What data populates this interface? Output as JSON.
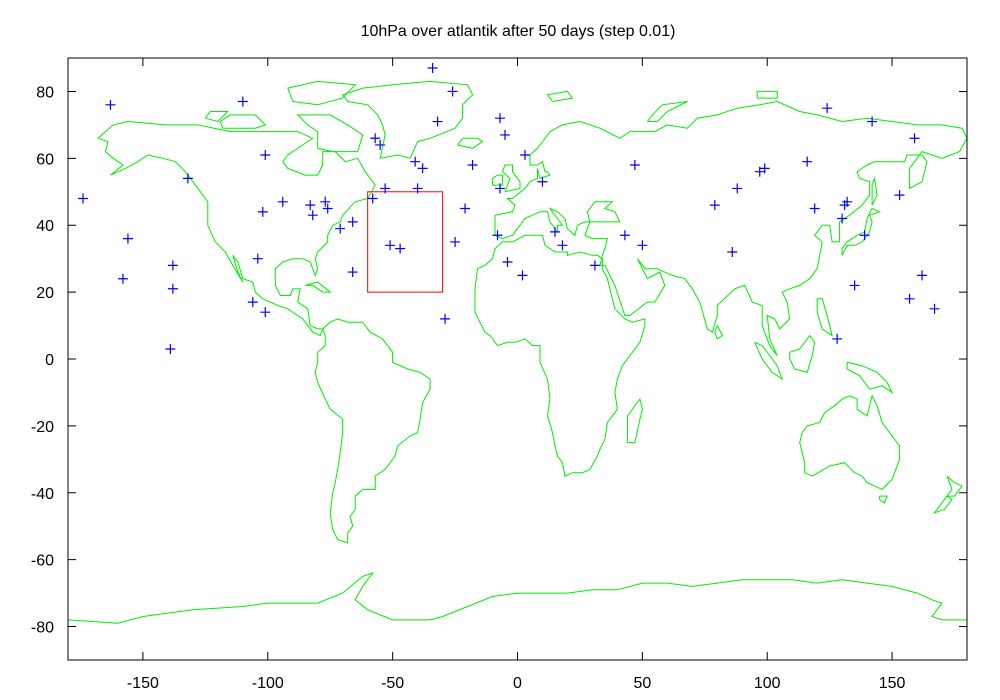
{
  "chart_data": {
    "type": "scatter",
    "title": "10hPa over atlantik after 50 days (step 0.01)",
    "xlim": [
      -180,
      180
    ],
    "ylim": [
      -90,
      90
    ],
    "x_ticks": [
      -150,
      -100,
      -50,
      0,
      50,
      100,
      150
    ],
    "y_ticks": [
      80,
      60,
      40,
      20,
      0,
      -20,
      -40,
      -60,
      -80
    ],
    "x_tick_labels": [
      "-150",
      "-100",
      "-50",
      "0",
      "50",
      "100",
      "150"
    ],
    "y_tick_labels": [
      "80",
      "60",
      "40",
      "20",
      "0",
      "-20",
      "-40",
      "-60",
      "-80"
    ],
    "grid": false,
    "colors": {
      "coast": "#00ee00",
      "points": "#0000ff",
      "region": "#ff0000",
      "frame": "#000000"
    },
    "region": {
      "lon_min": -60,
      "lon_max": -30,
      "lat_min": 20,
      "lat_max": 50
    },
    "points": [
      [
        -163,
        76
      ],
      [
        -110,
        77
      ],
      [
        -34,
        87
      ],
      [
        -26,
        80
      ],
      [
        -32,
        71
      ],
      [
        -7,
        72
      ],
      [
        -5,
        67
      ],
      [
        -57,
        66
      ],
      [
        -55,
        64
      ],
      [
        -101,
        61
      ],
      [
        -41,
        59
      ],
      [
        -38,
        57
      ],
      [
        -18,
        58
      ],
      [
        3,
        61
      ],
      [
        -132,
        54
      ],
      [
        -174,
        48
      ],
      [
        -94,
        47
      ],
      [
        -102,
        44
      ],
      [
        -83,
        46
      ],
      [
        -82,
        43
      ],
      [
        -77,
        47
      ],
      [
        -76,
        45
      ],
      [
        -71,
        39
      ],
      [
        -66,
        41
      ],
      [
        -58,
        48
      ],
      [
        -53,
        51
      ],
      [
        -40,
        51
      ],
      [
        -7,
        51
      ],
      [
        -21,
        45
      ],
      [
        10,
        53
      ],
      [
        47,
        58
      ],
      [
        -156,
        36
      ],
      [
        -138,
        28
      ],
      [
        -158,
        24
      ],
      [
        -138,
        21
      ],
      [
        -104,
        30
      ],
      [
        -106,
        17
      ],
      [
        -101,
        14
      ],
      [
        -139,
        3
      ],
      [
        -51,
        34
      ],
      [
        -47,
        33
      ],
      [
        -25,
        35
      ],
      [
        -66,
        26
      ],
      [
        -8,
        37
      ],
      [
        -4,
        29
      ],
      [
        2,
        25
      ],
      [
        -29,
        12
      ],
      [
        15,
        38
      ],
      [
        18,
        34
      ],
      [
        31,
        28
      ],
      [
        43,
        37
      ],
      [
        50,
        34
      ],
      [
        79,
        46
      ],
      [
        86,
        32
      ],
      [
        88,
        51
      ],
      [
        97,
        56
      ],
      [
        99,
        57
      ],
      [
        116,
        59
      ],
      [
        119,
        45
      ],
      [
        124,
        75
      ],
      [
        142,
        71
      ],
      [
        159,
        66
      ],
      [
        130,
        42
      ],
      [
        131,
        46
      ],
      [
        132,
        47
      ],
      [
        139,
        37
      ],
      [
        153,
        49
      ],
      [
        135,
        22
      ],
      [
        128,
        6
      ],
      [
        162,
        25
      ],
      [
        157,
        18
      ],
      [
        167,
        15
      ]
    ]
  }
}
